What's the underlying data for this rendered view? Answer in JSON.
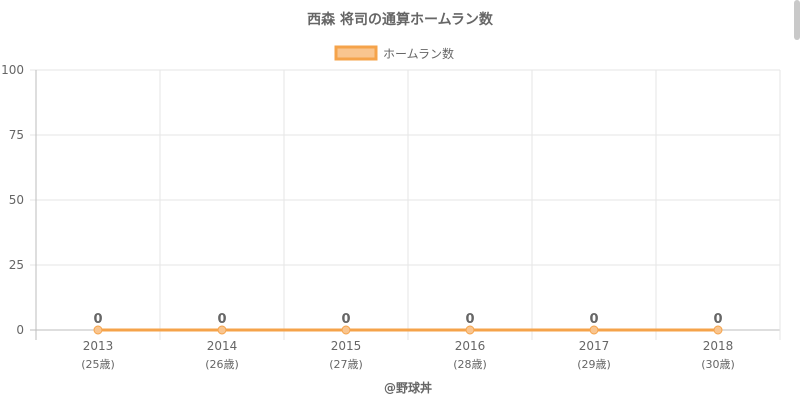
{
  "chart_data": {
    "type": "line",
    "title": "西森 将司の通算ホームラン数",
    "x": [
      "2013",
      "2014",
      "2015",
      "2016",
      "2017",
      "2018"
    ],
    "x_sublabels": [
      "(25歳)",
      "(26歳)",
      "(27歳)",
      "(28歳)",
      "(29歳)",
      "(30歳)"
    ],
    "series": [
      {
        "name": "ホームラン数",
        "values": [
          0,
          0,
          0,
          0,
          0,
          0
        ]
      }
    ],
    "data_labels": [
      "0",
      "0",
      "0",
      "0",
      "0",
      "0"
    ],
    "ylim": [
      0,
      100
    ],
    "yticks": [
      0,
      25,
      50,
      75,
      100
    ],
    "grid": true,
    "legend": "top-center",
    "colors": {
      "line": "#f5a34a",
      "fill": "#f9c58f",
      "grid": "#e6e6e6",
      "text": "#666666"
    }
  },
  "credit": "@野球丼"
}
